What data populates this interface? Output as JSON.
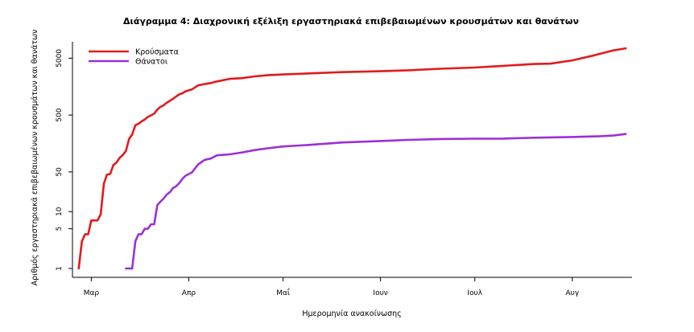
{
  "chart_data": {
    "type": "line",
    "title": "Διάγραμμα 4: Διαχρονική εξέλιξη εργαστηριακά επιβεβαιωμένων κρουσμάτων και θανάτων",
    "xlabel": "Ημερομηνία ανακοίνωσης",
    "ylabel": "Αριθμός εργαστηριακά επιβεβαιωμένων κρουσμάτων και θανάτων",
    "y_scale": "log",
    "ylim": [
      1,
      8000
    ],
    "yticks": [
      1,
      5,
      10,
      50,
      500,
      5000
    ],
    "x_ticks": [
      {
        "label": "Μαρ",
        "date": "2020-03-01"
      },
      {
        "label": "Απρ",
        "date": "2020-04-01"
      },
      {
        "label": "Μαΐ",
        "date": "2020-05-01"
      },
      {
        "label": "Ιουν",
        "date": "2020-06-01"
      },
      {
        "label": "Ιουλ",
        "date": "2020-07-01"
      },
      {
        "label": "Αυγ",
        "date": "2020-08-01"
      }
    ],
    "xlim": [
      "2020-02-24",
      "2020-08-20"
    ],
    "legend_position": "top-left",
    "grid": false,
    "series": [
      {
        "name": "Κρούσματα",
        "color": "#e31a1c",
        "points": [
          [
            "2020-02-26",
            1
          ],
          [
            "2020-02-27",
            3
          ],
          [
            "2020-02-28",
            4
          ],
          [
            "2020-02-29",
            4
          ],
          [
            "2020-03-01",
            7
          ],
          [
            "2020-03-02",
            7
          ],
          [
            "2020-03-03",
            7
          ],
          [
            "2020-03-04",
            9
          ],
          [
            "2020-03-05",
            31
          ],
          [
            "2020-03-06",
            45
          ],
          [
            "2020-03-07",
            46
          ],
          [
            "2020-03-08",
            66
          ],
          [
            "2020-03-09",
            73
          ],
          [
            "2020-03-10",
            89
          ],
          [
            "2020-03-11",
            99
          ],
          [
            "2020-03-12",
            117
          ],
          [
            "2020-03-13",
            190
          ],
          [
            "2020-03-14",
            228
          ],
          [
            "2020-03-15",
            331
          ],
          [
            "2020-03-16",
            352
          ],
          [
            "2020-03-17",
            387
          ],
          [
            "2020-03-18",
            418
          ],
          [
            "2020-03-19",
            464
          ],
          [
            "2020-03-20",
            495
          ],
          [
            "2020-03-21",
            530
          ],
          [
            "2020-03-22",
            624
          ],
          [
            "2020-03-23",
            695
          ],
          [
            "2020-03-24",
            743
          ],
          [
            "2020-03-25",
            821
          ],
          [
            "2020-03-26",
            892
          ],
          [
            "2020-03-27",
            966
          ],
          [
            "2020-03-28",
            1061
          ],
          [
            "2020-03-29",
            1156
          ],
          [
            "2020-03-30",
            1212
          ],
          [
            "2020-03-31",
            1314
          ],
          [
            "2020-04-02",
            1415
          ],
          [
            "2020-04-04",
            1673
          ],
          [
            "2020-04-06",
            1755
          ],
          [
            "2020-04-08",
            1832
          ],
          [
            "2020-04-10",
            1955
          ],
          [
            "2020-04-14",
            2170
          ],
          [
            "2020-04-18",
            2235
          ],
          [
            "2020-04-22",
            2401
          ],
          [
            "2020-04-26",
            2506
          ],
          [
            "2020-05-01",
            2591
          ],
          [
            "2020-05-10",
            2710
          ],
          [
            "2020-05-20",
            2850
          ],
          [
            "2020-06-01",
            2952
          ],
          [
            "2020-06-10",
            3068
          ],
          [
            "2020-06-20",
            3266
          ],
          [
            "2020-07-01",
            3432
          ],
          [
            "2020-07-10",
            3672
          ],
          [
            "2020-07-20",
            3964
          ],
          [
            "2020-07-25",
            4012
          ],
          [
            "2020-08-01",
            4587
          ],
          [
            "2020-08-08",
            5623
          ],
          [
            "2020-08-14",
            6858
          ],
          [
            "2020-08-18",
            7472
          ]
        ]
      },
      {
        "name": "Θάνατοι",
        "color": "#9b30d9",
        "points": [
          [
            "2020-03-12",
            1
          ],
          [
            "2020-03-13",
            1
          ],
          [
            "2020-03-14",
            1
          ],
          [
            "2020-03-15",
            3
          ],
          [
            "2020-03-16",
            4
          ],
          [
            "2020-03-17",
            4
          ],
          [
            "2020-03-18",
            5
          ],
          [
            "2020-03-19",
            5
          ],
          [
            "2020-03-20",
            6
          ],
          [
            "2020-03-21",
            6
          ],
          [
            "2020-03-22",
            13
          ],
          [
            "2020-03-23",
            15
          ],
          [
            "2020-03-24",
            17
          ],
          [
            "2020-03-25",
            20
          ],
          [
            "2020-03-26",
            22
          ],
          [
            "2020-03-27",
            26
          ],
          [
            "2020-03-28",
            28
          ],
          [
            "2020-03-29",
            32
          ],
          [
            "2020-03-30",
            38
          ],
          [
            "2020-03-31",
            43
          ],
          [
            "2020-04-02",
            49
          ],
          [
            "2020-04-04",
            68
          ],
          [
            "2020-04-06",
            81
          ],
          [
            "2020-04-08",
            86
          ],
          [
            "2020-04-10",
            98
          ],
          [
            "2020-04-14",
            102
          ],
          [
            "2020-04-18",
            110
          ],
          [
            "2020-04-22",
            121
          ],
          [
            "2020-04-26",
            130
          ],
          [
            "2020-05-01",
            140
          ],
          [
            "2020-05-10",
            150
          ],
          [
            "2020-05-20",
            165
          ],
          [
            "2020-06-01",
            175
          ],
          [
            "2020-06-10",
            183
          ],
          [
            "2020-06-20",
            190
          ],
          [
            "2020-07-01",
            192
          ],
          [
            "2020-07-10",
            193
          ],
          [
            "2020-07-20",
            200
          ],
          [
            "2020-08-01",
            206
          ],
          [
            "2020-08-10",
            213
          ],
          [
            "2020-08-14",
            218
          ],
          [
            "2020-08-18",
            232
          ]
        ]
      }
    ]
  }
}
